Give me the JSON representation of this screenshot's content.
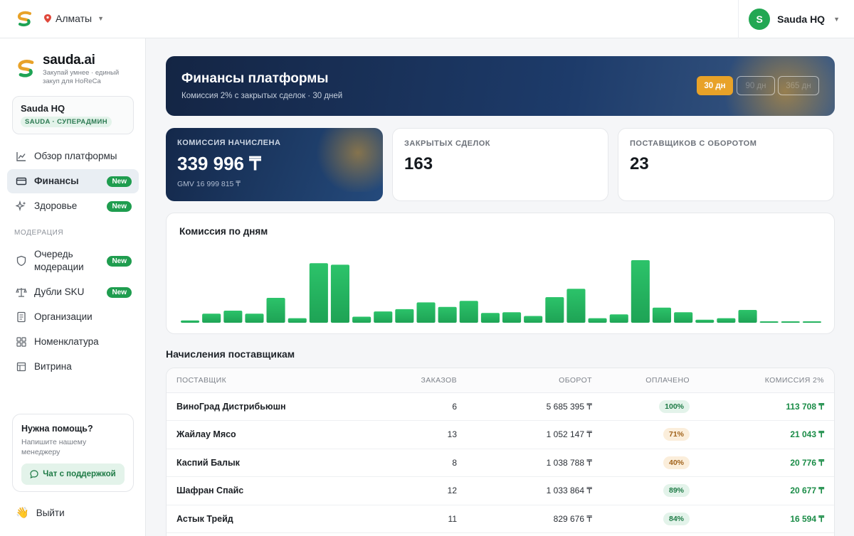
{
  "topbar": {
    "city": "Алматы",
    "user_initial": "S",
    "user_name": "Sauda HQ"
  },
  "sidebar": {
    "brand_name": "sauda",
    "brand_suffix": ".ai",
    "brand_tagline": "Закупай умнее · единый закуп для HoReCa",
    "org_name": "Sauda HQ",
    "org_role": "SAUDA · СУПЕРАДМИН",
    "items": [
      {
        "label": "Обзор платформы",
        "badge": ""
      },
      {
        "label": "Финансы",
        "badge": "New"
      },
      {
        "label": "Здоровье",
        "badge": "New"
      }
    ],
    "section_moderation": "МОДЕРАЦИЯ",
    "moderation_items": [
      {
        "label": "Очередь модерации",
        "badge": "New"
      },
      {
        "label": "Дубли SKU",
        "badge": "New"
      },
      {
        "label": "Организации",
        "badge": ""
      },
      {
        "label": "Номенклатура",
        "badge": ""
      },
      {
        "label": "Витрина",
        "badge": ""
      }
    ],
    "help_title": "Нужна помощь?",
    "help_text": "Напишите нашему менеджеру",
    "help_button": "Чат с поддержкой",
    "logout": "Выйти"
  },
  "hero": {
    "title": "Финансы платформы",
    "subtitle": "Комиссия 2% с закрытых сделок · 30 дней",
    "period_active": "30 дн",
    "period_2": "90 дн",
    "period_3": "365 дн"
  },
  "stats": {
    "commission_label": "КОМИССИЯ НАЧИСЛЕНА",
    "commission_value": "339 996 ₸",
    "commission_gmv": "GMV 16 999 815 ₸",
    "deals_label": "ЗАКРЫТЫХ СДЕЛОК",
    "deals_value": "163",
    "suppliers_label": "ПОСТАВЩИКОВ С ОБОРОТОМ",
    "suppliers_value": "23"
  },
  "chart_data": {
    "type": "bar",
    "title": "Комиссия по дням",
    "values": [
      3,
      12,
      16,
      12,
      33,
      6,
      79,
      77,
      8,
      15,
      18,
      27,
      21,
      29,
      13,
      14,
      9,
      34,
      45,
      6,
      11,
      83,
      20,
      14,
      4,
      6,
      17,
      1,
      1,
      1
    ],
    "colors": {
      "bar_top": "#2cc36a",
      "bar_bottom": "#1ea355"
    }
  },
  "suppliers": {
    "title": "Начисления поставщикам",
    "columns": [
      "ПОСТАВЩИК",
      "ЗАКАЗОВ",
      "ОБОРОТ",
      "ОПЛАЧЕНО",
      "КОМИССИЯ 2%"
    ],
    "rows": [
      {
        "name": "ВиноГрад Дистрибьюшн",
        "orders": "6",
        "turnover": "5 685 395 ₸",
        "paid": "100%",
        "paid_tone": "g",
        "commission": "113 708 ₸"
      },
      {
        "name": "Жайлау Мясо",
        "orders": "13",
        "turnover": "1 052 147 ₸",
        "paid": "71%",
        "paid_tone": "o",
        "commission": "21 043 ₸"
      },
      {
        "name": "Каспий Балык",
        "orders": "8",
        "turnover": "1 038 788 ₸",
        "paid": "40%",
        "paid_tone": "o",
        "commission": "20 776 ₸"
      },
      {
        "name": "Шафран Спайс",
        "orders": "12",
        "turnover": "1 033 864 ₸",
        "paid": "89%",
        "paid_tone": "g",
        "commission": "20 677 ₸"
      },
      {
        "name": "Астык Трейд",
        "orders": "11",
        "turnover": "829 676 ₸",
        "paid": "84%",
        "paid_tone": "g",
        "commission": "16 594 ₸"
      }
    ]
  }
}
